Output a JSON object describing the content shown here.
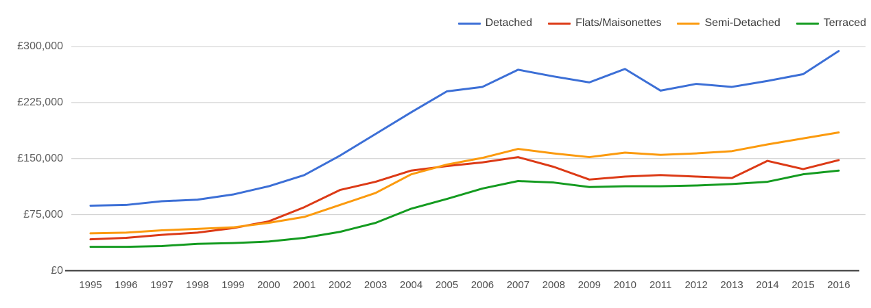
{
  "page": {
    "background": "#ffffff",
    "gridline_color": "#cccccc",
    "axis_line_color": "#333333",
    "tick_text_color": "#5e5e5e",
    "legend_text_color": "#3c3c3c"
  },
  "chart_data": {
    "type": "line",
    "title": "",
    "xlabel": "",
    "ylabel": "",
    "ylim": [
      0,
      300000
    ],
    "grid": "horizontal",
    "legend_position": "top-right",
    "categories": [
      "1995",
      "1996",
      "1997",
      "1998",
      "1999",
      "2000",
      "2001",
      "2002",
      "2003",
      "2004",
      "2005",
      "2006",
      "2007",
      "2008",
      "2009",
      "2010",
      "2011",
      "2012",
      "2013",
      "2014",
      "2015",
      "2016"
    ],
    "y_ticks": [
      {
        "value": 0,
        "label": "£0"
      },
      {
        "value": 75000,
        "label": "£75,000"
      },
      {
        "value": 150000,
        "label": "£150,000"
      },
      {
        "value": 225000,
        "label": "£225,000"
      },
      {
        "value": 300000,
        "label": "£300,000"
      }
    ],
    "series": [
      {
        "name": "Detached",
        "color": "#3c6fd6",
        "values": [
          87000,
          88000,
          93000,
          95000,
          102000,
          113000,
          128000,
          154000,
          183000,
          212000,
          240000,
          246000,
          269000,
          260000,
          252000,
          270000,
          241000,
          250000,
          246000,
          254000,
          263000,
          294000
        ]
      },
      {
        "name": "Flats/Maisonettes",
        "color": "#dc3a16",
        "values": [
          42000,
          44000,
          48000,
          51000,
          57000,
          66000,
          85000,
          108000,
          119000,
          134000,
          140000,
          145000,
          152000,
          139000,
          122000,
          126000,
          128000,
          126000,
          124000,
          147000,
          136000,
          148000
        ]
      },
      {
        "name": "Semi-Detached",
        "color": "#fb9a0e",
        "values": [
          50000,
          51000,
          54000,
          56000,
          58000,
          64000,
          72000,
          88000,
          104000,
          129000,
          142000,
          151000,
          163000,
          157000,
          152000,
          158000,
          155000,
          157000,
          160000,
          169000,
          177000,
          185000
        ]
      },
      {
        "name": "Terraced",
        "color": "#149b20",
        "values": [
          32000,
          32000,
          33000,
          36000,
          37000,
          39000,
          44000,
          52000,
          64000,
          83000,
          96000,
          110000,
          120000,
          118000,
          112000,
          113000,
          113000,
          114000,
          116000,
          119000,
          129000,
          134000
        ]
      }
    ]
  }
}
